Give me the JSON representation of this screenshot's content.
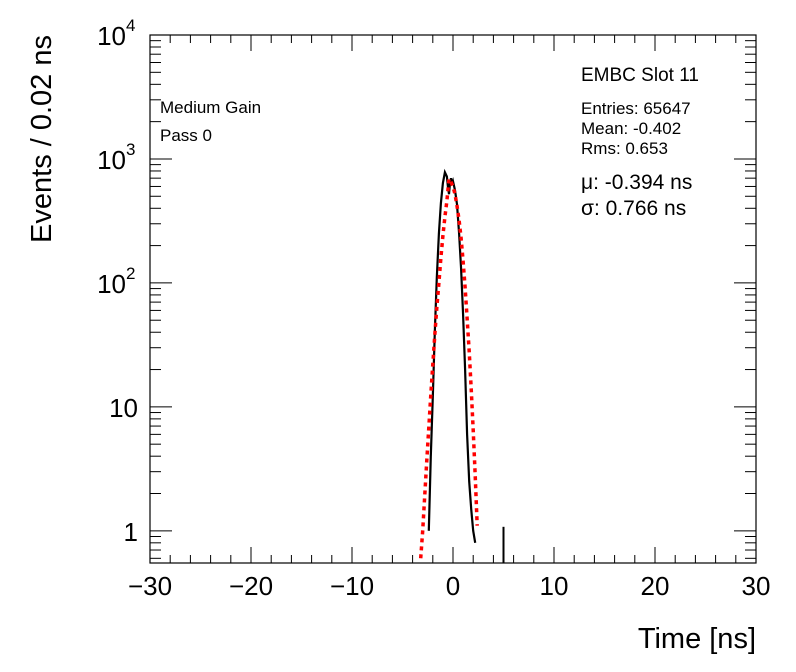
{
  "chart_data": {
    "type": "line",
    "xlabel": "Time [ns]",
    "ylabel": "Events / 0.02 ns",
    "xlim": [
      -30,
      30
    ],
    "ylim": [
      0.55,
      10000
    ],
    "yscale": "log",
    "x_ticks": [
      {
        "value": -30,
        "label": "−30"
      },
      {
        "value": -20,
        "label": "−20"
      },
      {
        "value": -10,
        "label": "−10"
      },
      {
        "value": 0,
        "label": "0"
      },
      {
        "value": 10,
        "label": "10"
      },
      {
        "value": 20,
        "label": "20"
      },
      {
        "value": 30,
        "label": "30"
      }
    ],
    "y_ticks": [
      {
        "value": 1,
        "base": "1",
        "exp": ""
      },
      {
        "value": 10,
        "base": "10",
        "exp": ""
      },
      {
        "value": 100,
        "base": "10",
        "exp": "2"
      },
      {
        "value": 1000,
        "base": "10",
        "exp": "3"
      },
      {
        "value": 10000,
        "base": "10",
        "exp": "4"
      }
    ],
    "grid": false,
    "series": [
      {
        "color": "#000000",
        "style": "solid",
        "x": [
          -2.4,
          -2.2,
          -2.0,
          -1.8,
          -1.6,
          -1.4,
          -1.2,
          -1.0,
          -0.8,
          -0.6,
          -0.5,
          -0.4,
          -0.3,
          -0.2,
          -0.1,
          0.0,
          0.2,
          0.4,
          0.6,
          0.8,
          1.0,
          1.2,
          1.4,
          1.6,
          1.8,
          2.0,
          2.2
        ],
        "y": [
          1,
          4,
          12,
          40,
          110,
          250,
          440,
          640,
          780,
          720,
          600,
          520,
          640,
          700,
          620,
          660,
          560,
          430,
          250,
          130,
          55,
          20,
          6,
          2.5,
          1.5,
          1,
          0.8
        ]
      },
      {
        "color": "#ff0000",
        "style": "dotted",
        "x": [
          -3.2,
          -3.0,
          -2.8,
          -2.6,
          -2.4,
          -2.2,
          -2.0,
          -1.8,
          -1.6,
          -1.4,
          -1.2,
          -1.0,
          -0.8,
          -0.6,
          -0.394,
          -0.2,
          0.0,
          0.2,
          0.4,
          0.6,
          0.8,
          1.0,
          1.2,
          1.4,
          1.6,
          1.8,
          2.0,
          2.2,
          2.4
        ],
        "y": [
          0.6,
          1.0,
          1.9,
          3.6,
          6.8,
          12.5,
          22,
          38,
          63,
          100,
          160,
          240,
          340,
          460,
          690,
          650,
          600,
          520,
          420,
          320,
          230,
          150,
          92,
          52,
          28,
          14,
          6.5,
          2.8,
          1.1
        ]
      },
      {
        "color": "#000000",
        "style": "spike",
        "x": [
          5.0
        ],
        "y": [
          1
        ]
      }
    ],
    "annotations": {
      "gain": "Medium Gain",
      "pass": "Pass 0",
      "title": "EMBC Slot 11",
      "entries": "Entries: 65647",
      "mean": "Mean: -0.402",
      "rms": "Rms: 0.653",
      "mu": "μ: -0.394 ns",
      "sigma": "σ: 0.766 ns"
    }
  }
}
